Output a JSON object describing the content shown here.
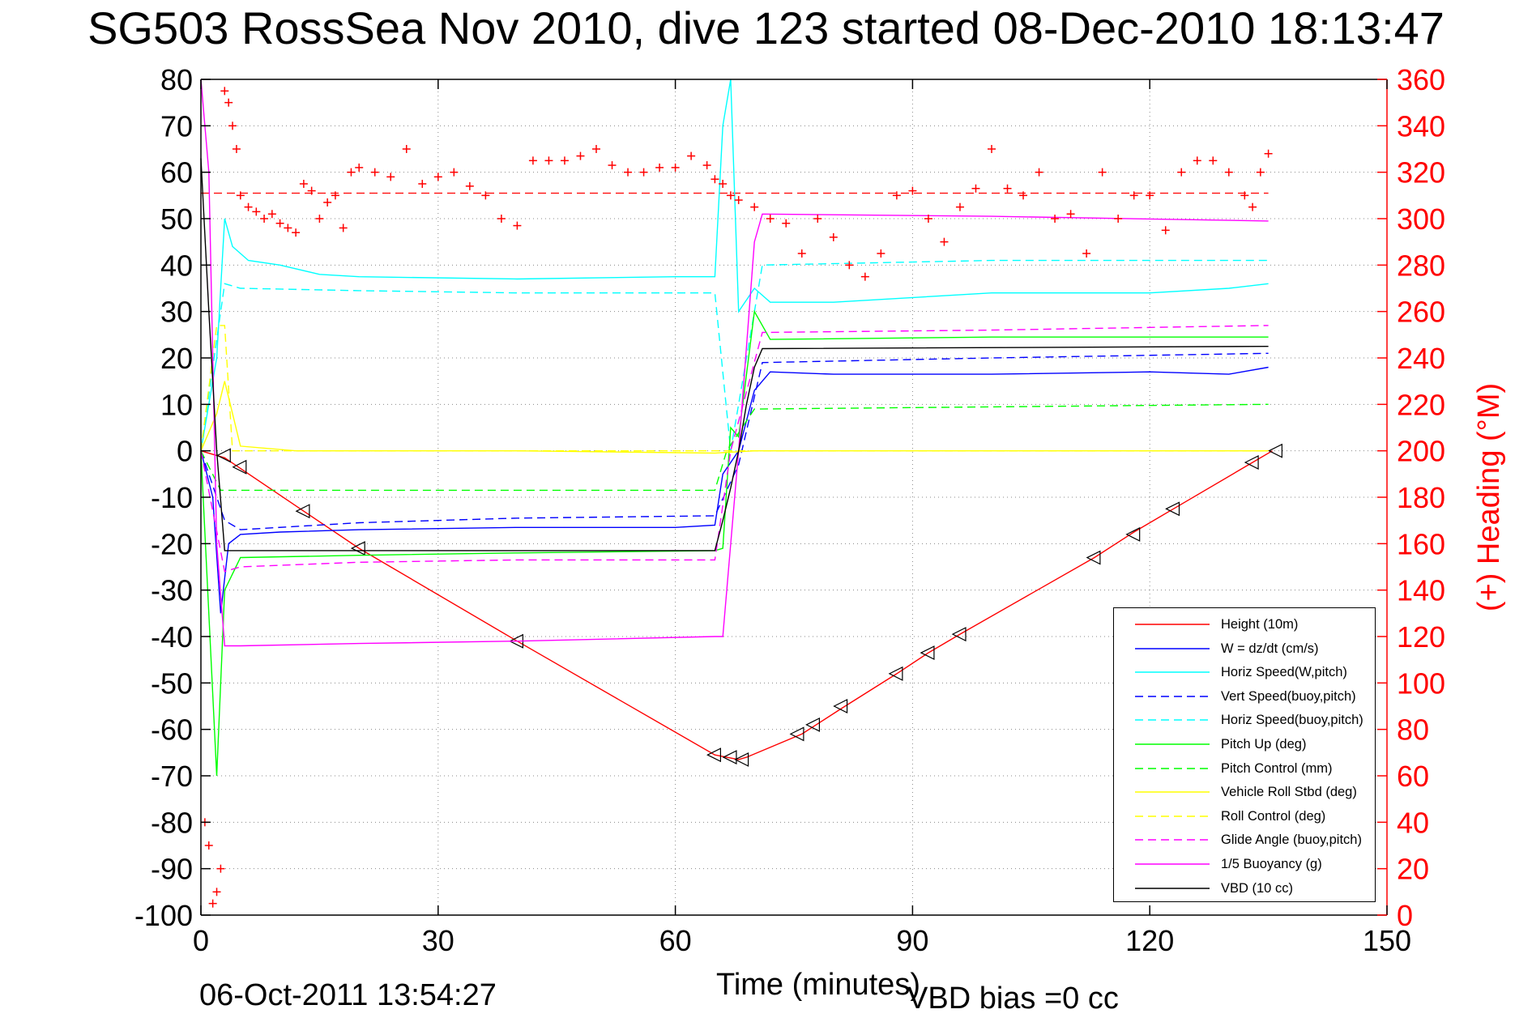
{
  "title": "SG503 RossSea Nov 2010, dive 123 started 08-Dec-2010 18:13:47",
  "footer": {
    "timestamp": "06-Oct-2011 13:54:27",
    "vbd_bias": "VBD bias =0 cc"
  },
  "colors": {
    "height": "#ff0000",
    "w": "#0000ff",
    "horiz": "#00ffff",
    "pitch": "#00ff00",
    "roll": "#ffff00",
    "glide": "#ff00ff",
    "buoy": "#ff00ff",
    "vbd": "#000000",
    "heading": "#ff0000"
  },
  "chart_data": {
    "type": "line",
    "title": "SG503 RossSea Nov 2010, dive 123 started 08-Dec-2010 18:13:47",
    "xlabel": "Time (minutes)",
    "ylabel": "",
    "y2label": "(+) Heading (°M)",
    "xlim": [
      0,
      150
    ],
    "ylim": [
      -100,
      80
    ],
    "y2lim": [
      0,
      360
    ],
    "xticks": [
      "0",
      "30",
      "60",
      "90",
      "120",
      "150"
    ],
    "yticks": [
      "80",
      "70",
      "60",
      "50",
      "40",
      "30",
      "20",
      "10",
      "0",
      "-10",
      "-20",
      "-30",
      "-40",
      "-50",
      "-60",
      "-70",
      "-80",
      "-90",
      "-100"
    ],
    "y2ticks": [
      "360",
      "340",
      "320",
      "300",
      "280",
      "260",
      "240",
      "220",
      "200",
      "180",
      "160",
      "140",
      "120",
      "100",
      "80",
      "60",
      "40",
      "20",
      "0"
    ],
    "grid": true,
    "legend_position": "bottom-right",
    "series": [
      {
        "name": "Height (10m)",
        "color": "#ff0000",
        "style": "solid",
        "axis": "left",
        "x": [
          0,
          3,
          13,
          20,
          40,
          65,
          68,
          69,
          76,
          81,
          88,
          92,
          96,
          113,
          118,
          123,
          133,
          135.5
        ],
        "y": [
          0,
          -1.5,
          -13,
          -21,
          -41,
          -65.5,
          -66.5,
          -66,
          -61,
          -55.5,
          -48,
          -43.5,
          -39.5,
          -23,
          -17.5,
          -12.5,
          -2.5,
          0
        ],
        "markers": [
          [
            3,
            -1
          ],
          [
            5,
            -3.5
          ],
          [
            13,
            -13
          ],
          [
            20,
            -21
          ],
          [
            40,
            -41
          ],
          [
            65,
            -65.5
          ],
          [
            67,
            -66
          ],
          [
            68.5,
            -66.5
          ],
          [
            75.5,
            -61
          ],
          [
            77.5,
            -59
          ],
          [
            81,
            -55
          ],
          [
            88,
            -48
          ],
          [
            92,
            -43.5
          ],
          [
            96,
            -39.5
          ],
          [
            113,
            -23
          ],
          [
            118,
            -18
          ],
          [
            123,
            -12.5
          ],
          [
            133,
            -2.5
          ],
          [
            136,
            0
          ]
        ]
      },
      {
        "name": "W = dz/dt (cm/s)",
        "color": "#0000ff",
        "style": "solid",
        "axis": "left",
        "x": [
          0,
          1.5,
          2.5,
          3.5,
          5,
          10,
          20,
          40,
          60,
          65,
          66,
          68,
          70,
          72,
          80,
          100,
          120,
          130,
          135
        ],
        "y": [
          0,
          -10,
          -35,
          -20,
          -18,
          -17.5,
          -17,
          -16.5,
          -16.5,
          -16,
          -5,
          0,
          13,
          17,
          16.5,
          16.5,
          17,
          16.5,
          18
        ]
      },
      {
        "name": "Horiz Speed(W,pitch)",
        "color": "#00ffff",
        "style": "solid",
        "axis": "left",
        "x": [
          0,
          2,
          3,
          4,
          6,
          10,
          15,
          20,
          40,
          60,
          65,
          66,
          67,
          68,
          70,
          72,
          80,
          100,
          120,
          130,
          135
        ],
        "y": [
          0,
          20,
          50,
          44,
          41,
          40,
          38,
          37.5,
          37,
          37.5,
          37.5,
          70,
          82,
          30,
          35,
          32,
          32,
          34,
          34,
          35,
          36
        ]
      },
      {
        "name": "Vert Speed(buoy,pitch)",
        "color": "#0000ff",
        "style": "dashed",
        "axis": "left",
        "x": [
          0,
          3,
          5,
          20,
          40,
          65,
          68,
          71,
          100,
          135
        ],
        "y": [
          0,
          -15,
          -17,
          -15.5,
          -14.5,
          -14,
          -3,
          19,
          20,
          21
        ]
      },
      {
        "name": "Horiz Speed(buoy,pitch)",
        "color": "#00ffff",
        "style": "dashed",
        "axis": "left",
        "x": [
          0,
          3,
          5,
          20,
          40,
          65,
          67,
          71,
          100,
          135
        ],
        "y": [
          0,
          36,
          35,
          34.5,
          34,
          34,
          0,
          40,
          41,
          41
        ]
      },
      {
        "name": "Pitch Up (deg)",
        "color": "#00ff00",
        "style": "solid",
        "axis": "left",
        "x": [
          0,
          2,
          3,
          5,
          20,
          40,
          65,
          66,
          67,
          68,
          70,
          72,
          100,
          135
        ],
        "y": [
          0,
          -70,
          -30,
          -23,
          -22.5,
          -22,
          -21.5,
          -21,
          5,
          3,
          30,
          24,
          24.5,
          24.5
        ]
      },
      {
        "name": "Pitch Control (mm)",
        "color": "#00ff00",
        "style": "dashed",
        "axis": "left",
        "x": [
          0,
          2.5,
          65,
          66.5,
          70,
          135
        ],
        "y": [
          0,
          -8.5,
          -8.5,
          0,
          9,
          10
        ]
      },
      {
        "name": "Vehicle Roll Stbd (deg)",
        "color": "#ffff00",
        "style": "solid",
        "axis": "left",
        "x": [
          0,
          2,
          3,
          5,
          12,
          40,
          65,
          70,
          75,
          90,
          110,
          130,
          135
        ],
        "y": [
          0,
          8,
          15,
          1,
          0,
          0,
          -0.5,
          0,
          0,
          0,
          0,
          0,
          0
        ]
      },
      {
        "name": "Roll Control (deg)",
        "color": "#ffff00",
        "style": "dashed",
        "axis": "left",
        "x": [
          0,
          2,
          3,
          4,
          10,
          40,
          65,
          70,
          100,
          135
        ],
        "y": [
          0,
          27,
          27,
          0,
          0,
          0,
          0,
          0,
          0,
          0
        ]
      },
      {
        "name": "Glide Angle (buoy,pitch)",
        "color": "#ff00ff",
        "style": "dashed",
        "axis": "left",
        "x": [
          0,
          3,
          5,
          20,
          40,
          65,
          67,
          71,
          100,
          135
        ],
        "y": [
          0,
          -26,
          -25,
          -24,
          -23.5,
          -23.5,
          0,
          25.5,
          26,
          27
        ]
      },
      {
        "name": "1/5 Buoyancy (g)",
        "color": "#ff00ff",
        "style": "solid",
        "axis": "left",
        "x": [
          0,
          1,
          2,
          3,
          5,
          20,
          40,
          65,
          66,
          68,
          70,
          71,
          100,
          135
        ],
        "y": [
          80,
          60,
          -20,
          -42,
          -42,
          -41.5,
          -41,
          -40,
          -40,
          0,
          45,
          51,
          50.5,
          49.5
        ]
      },
      {
        "name": "VBD (10 cc)",
        "color": "#000000",
        "style": "solid",
        "axis": "left",
        "x": [
          0,
          1,
          2,
          3,
          10,
          40,
          65,
          66,
          67,
          68,
          69,
          70,
          71,
          135
        ],
        "y": [
          63,
          30,
          0,
          -21.5,
          -21.5,
          -21.5,
          -21.5,
          -15,
          -8,
          0,
          10,
          18,
          22,
          22.5
        ]
      }
    ],
    "heading_reference": {
      "value": 311,
      "color": "#ff0000",
      "style": "dashed",
      "axis": "right"
    },
    "heading_points": {
      "axis": "right",
      "marker": "+",
      "color": "#ff0000",
      "x": [
        0.5,
        1,
        1.5,
        2,
        2.5,
        3,
        3.5,
        4,
        4.5,
        5,
        6,
        7,
        8,
        9,
        10,
        11,
        12,
        13,
        14,
        15,
        16,
        17,
        18,
        19,
        20,
        22,
        24,
        26,
        28,
        30,
        32,
        34,
        36,
        38,
        40,
        42,
        44,
        46,
        48,
        50,
        52,
        54,
        56,
        58,
        60,
        62,
        64,
        65,
        66,
        67,
        68,
        70,
        72,
        74,
        76,
        78,
        80,
        82,
        84,
        86,
        88,
        90,
        92,
        94,
        96,
        98,
        100,
        102,
        104,
        106,
        108,
        110,
        112,
        114,
        116,
        118,
        120,
        122,
        124,
        126,
        128,
        130,
        132,
        133,
        134,
        135
      ],
      "y": [
        40,
        30,
        5,
        10,
        20,
        355,
        350,
        340,
        330,
        310,
        305,
        303,
        300,
        302,
        298,
        296,
        294,
        315,
        312,
        300,
        307,
        310,
        296,
        320,
        322,
        320,
        318,
        330,
        315,
        318,
        320,
        314,
        310,
        300,
        297,
        325,
        325,
        325,
        327,
        330,
        323,
        320,
        320,
        322,
        322,
        327,
        323,
        317,
        315,
        310,
        308,
        305,
        300,
        298,
        285,
        300,
        292,
        280,
        275,
        285,
        310,
        312,
        300,
        290,
        305,
        313,
        330,
        313,
        310,
        320,
        300,
        302,
        285,
        320,
        300,
        310,
        310,
        295,
        320,
        325,
        325,
        320,
        310,
        305,
        320,
        328
      ]
    }
  },
  "legend": {
    "items": [
      {
        "label": "Height (10m)",
        "color": "#ff0000",
        "style": "solid"
      },
      {
        "label": "W = dz/dt (cm/s)",
        "color": "#0000ff",
        "style": "solid"
      },
      {
        "label": "Horiz Speed(W,pitch)",
        "color": "#00ffff",
        "style": "solid"
      },
      {
        "label": "Vert Speed(buoy,pitch)",
        "color": "#0000ff",
        "style": "dashed"
      },
      {
        "label": "Horiz Speed(buoy,pitch)",
        "color": "#00ffff",
        "style": "dashed"
      },
      {
        "label": "Pitch Up (deg)",
        "color": "#00ff00",
        "style": "solid"
      },
      {
        "label": "Pitch Control (mm)",
        "color": "#00ff00",
        "style": "dashed"
      },
      {
        "label": "Vehicle Roll Stbd (deg)",
        "color": "#ffff00",
        "style": "solid"
      },
      {
        "label": "Roll Control (deg)",
        "color": "#ffff00",
        "style": "dashed"
      },
      {
        "label": "Glide Angle (buoy,pitch)",
        "color": "#ff00ff",
        "style": "dashed"
      },
      {
        "label": "1/5 Buoyancy (g)",
        "color": "#ff00ff",
        "style": "solid"
      },
      {
        "label": "VBD (10 cc)",
        "color": "#000000",
        "style": "solid"
      }
    ]
  }
}
